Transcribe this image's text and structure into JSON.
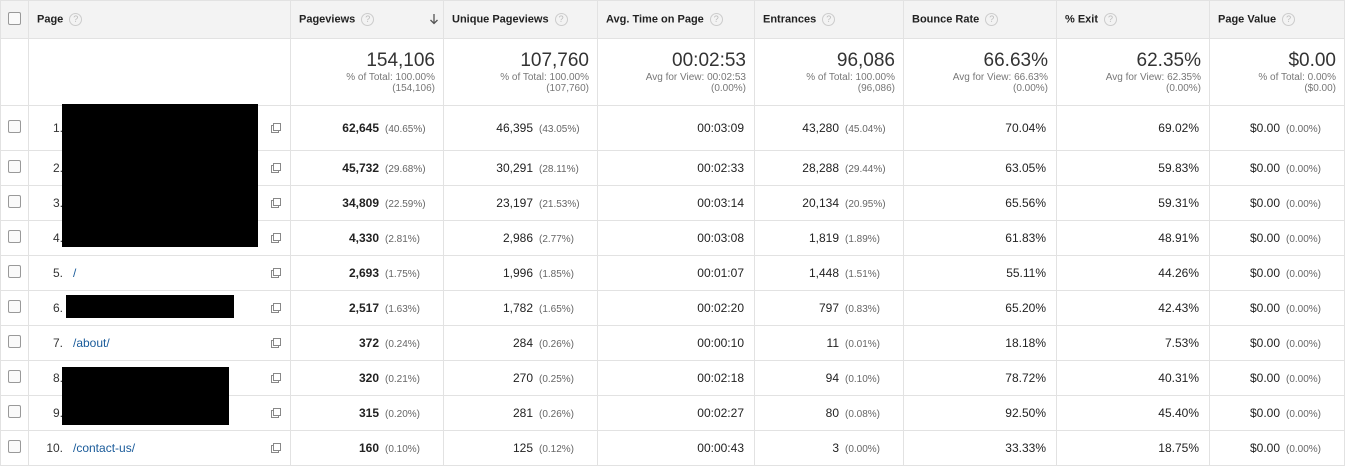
{
  "table": {
    "columns": [
      "Page",
      "Pageviews",
      "Unique Pageviews",
      "Avg. Time on Page",
      "Entrances",
      "Bounce Rate",
      "% Exit",
      "Page Value"
    ],
    "totals": [
      [
        "154,106",
        "% of Total: 100.00%",
        "(154,106)"
      ],
      [
        "107,760",
        "% of Total: 100.00%",
        "(107,760)"
      ],
      [
        "00:02:53",
        "Avg for View: 00:02:53",
        "(0.00%)"
      ],
      [
        "96,086",
        "% of Total: 100.00%",
        "(96,086)"
      ],
      [
        "66.63%",
        "Avg for View: 66.63%",
        "(0.00%)"
      ],
      [
        "62.35%",
        "Avg for View: 62.35%",
        "(0.00%)"
      ],
      [
        "$0.00",
        "% of Total: 0.00%",
        "($0.00)"
      ]
    ],
    "rows": [
      {
        "n": "1.",
        "page": null,
        "cells": [
          [
            "62,645",
            "(40.65%)"
          ],
          [
            "46,395",
            "(43.05%)"
          ],
          [
            "00:03:09"
          ],
          [
            "43,280",
            "(45.04%)"
          ],
          [
            "70.04%"
          ],
          [
            "69.02%"
          ],
          [
            "$0.00",
            "(0.00%)"
          ]
        ]
      },
      {
        "n": "2.",
        "page": null,
        "cells": [
          [
            "45,732",
            "(29.68%)"
          ],
          [
            "30,291",
            "(28.11%)"
          ],
          [
            "00:02:33"
          ],
          [
            "28,288",
            "(29.44%)"
          ],
          [
            "63.05%"
          ],
          [
            "59.83%"
          ],
          [
            "$0.00",
            "(0.00%)"
          ]
        ]
      },
      {
        "n": "3.",
        "page": null,
        "cells": [
          [
            "34,809",
            "(22.59%)"
          ],
          [
            "23,197",
            "(21.53%)"
          ],
          [
            "00:03:14"
          ],
          [
            "20,134",
            "(20.95%)"
          ],
          [
            "65.56%"
          ],
          [
            "59.31%"
          ],
          [
            "$0.00",
            "(0.00%)"
          ]
        ]
      },
      {
        "n": "4.",
        "page": null,
        "cells": [
          [
            "4,330",
            "(2.81%)"
          ],
          [
            "2,986",
            "(2.77%)"
          ],
          [
            "00:03:08"
          ],
          [
            "1,819",
            "(1.89%)"
          ],
          [
            "61.83%"
          ],
          [
            "48.91%"
          ],
          [
            "$0.00",
            "(0.00%)"
          ]
        ]
      },
      {
        "n": "5.",
        "page": "/",
        "cells": [
          [
            "2,693",
            "(1.75%)"
          ],
          [
            "1,996",
            "(1.85%)"
          ],
          [
            "00:01:07"
          ],
          [
            "1,448",
            "(1.51%)"
          ],
          [
            "55.11%"
          ],
          [
            "44.26%"
          ],
          [
            "$0.00",
            "(0.00%)"
          ]
        ]
      },
      {
        "n": "6.",
        "page": null,
        "cells": [
          [
            "2,517",
            "(1.63%)"
          ],
          [
            "1,782",
            "(1.65%)"
          ],
          [
            "00:02:20"
          ],
          [
            "797",
            "(0.83%)"
          ],
          [
            "65.20%"
          ],
          [
            "42.43%"
          ],
          [
            "$0.00",
            "(0.00%)"
          ]
        ]
      },
      {
        "n": "7.",
        "page": "/about/",
        "cells": [
          [
            "372",
            "(0.24%)"
          ],
          [
            "284",
            "(0.26%)"
          ],
          [
            "00:00:10"
          ],
          [
            "11",
            "(0.01%)"
          ],
          [
            "18.18%"
          ],
          [
            "7.53%"
          ],
          [
            "$0.00",
            "(0.00%)"
          ]
        ]
      },
      {
        "n": "8.",
        "page": null,
        "cells": [
          [
            "320",
            "(0.21%)"
          ],
          [
            "270",
            "(0.25%)"
          ],
          [
            "00:02:18"
          ],
          [
            "94",
            "(0.10%)"
          ],
          [
            "78.72%"
          ],
          [
            "40.31%"
          ],
          [
            "$0.00",
            "(0.00%)"
          ]
        ]
      },
      {
        "n": "9.",
        "page": null,
        "cells": [
          [
            "315",
            "(0.20%)"
          ],
          [
            "281",
            "(0.26%)"
          ],
          [
            "00:02:27"
          ],
          [
            "80",
            "(0.08%)"
          ],
          [
            "92.50%"
          ],
          [
            "45.40%"
          ],
          [
            "$0.00",
            "(0.00%)"
          ]
        ]
      },
      {
        "n": "10.",
        "page": "/contact-us/",
        "cells": [
          [
            "160",
            "(0.10%)"
          ],
          [
            "125",
            "(0.12%)"
          ],
          [
            "00:00:43"
          ],
          [
            "3",
            "(0.00%)"
          ],
          [
            "33.33%"
          ],
          [
            "18.75%"
          ],
          [
            "$0.00",
            "(0.00%)"
          ]
        ]
      }
    ]
  }
}
